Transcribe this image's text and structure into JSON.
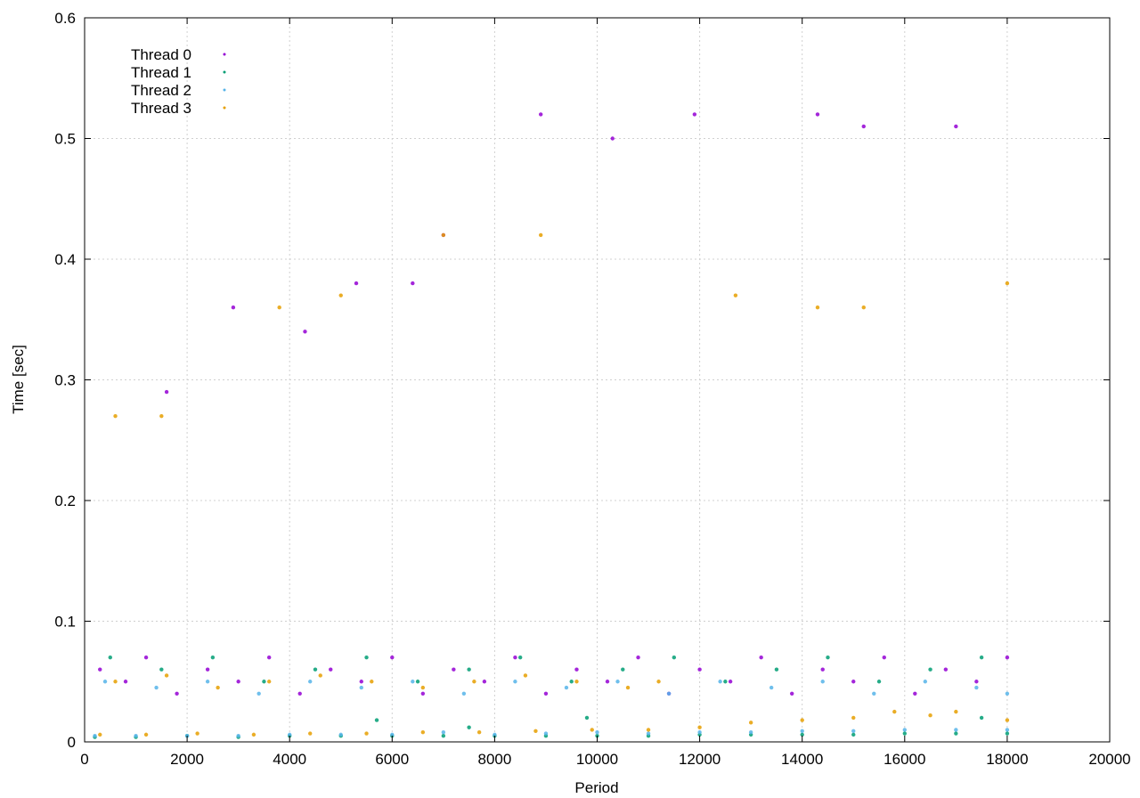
{
  "chart_data": {
    "type": "scatter",
    "title": "",
    "xlabel": "Period",
    "ylabel": "Time [sec]",
    "xlim": [
      0,
      20000
    ],
    "ylim": [
      0,
      0.6
    ],
    "x_ticks": [
      "0",
      "2000",
      "4000",
      "6000",
      "8000",
      "10000",
      "12000",
      "14000",
      "16000",
      "18000",
      "20000"
    ],
    "y_ticks": [
      "0",
      "0.1",
      "0.2",
      "0.3",
      "0.4",
      "0.5",
      "0.6"
    ],
    "grid": true,
    "legend_position": "top-left",
    "series": [
      {
        "name": "Thread 0",
        "color": "#9400d3",
        "points": [
          [
            300,
            0.06
          ],
          [
            800,
            0.05
          ],
          [
            1200,
            0.07
          ],
          [
            1800,
            0.04
          ],
          [
            2400,
            0.06
          ],
          [
            3000,
            0.05
          ],
          [
            3600,
            0.07
          ],
          [
            4200,
            0.04
          ],
          [
            4800,
            0.06
          ],
          [
            5400,
            0.05
          ],
          [
            6000,
            0.07
          ],
          [
            6600,
            0.04
          ],
          [
            7200,
            0.06
          ],
          [
            7800,
            0.05
          ],
          [
            8400,
            0.07
          ],
          [
            9000,
            0.04
          ],
          [
            9600,
            0.06
          ],
          [
            10200,
            0.05
          ],
          [
            10800,
            0.07
          ],
          [
            11400,
            0.04
          ],
          [
            12000,
            0.06
          ],
          [
            12600,
            0.05
          ],
          [
            13200,
            0.07
          ],
          [
            13800,
            0.04
          ],
          [
            14400,
            0.06
          ],
          [
            15000,
            0.05
          ],
          [
            15600,
            0.07
          ],
          [
            16200,
            0.04
          ],
          [
            16800,
            0.06
          ],
          [
            17400,
            0.05
          ],
          [
            18000,
            0.07
          ],
          [
            1600,
            0.29
          ],
          [
            2900,
            0.36
          ],
          [
            4300,
            0.34
          ],
          [
            5300,
            0.38
          ],
          [
            6400,
            0.38
          ],
          [
            7000,
            0.42
          ],
          [
            8900,
            0.52
          ],
          [
            10300,
            0.5
          ],
          [
            11900,
            0.52
          ],
          [
            14300,
            0.52
          ],
          [
            15200,
            0.51
          ],
          [
            17000,
            0.51
          ]
        ]
      },
      {
        "name": "Thread 1",
        "color": "#009e73",
        "points": [
          [
            200,
            0.004
          ],
          [
            1000,
            0.004
          ],
          [
            2000,
            0.005
          ],
          [
            3000,
            0.004
          ],
          [
            4000,
            0.005
          ],
          [
            5000,
            0.005
          ],
          [
            5700,
            0.018
          ],
          [
            6000,
            0.005
          ],
          [
            7000,
            0.005
          ],
          [
            7500,
            0.012
          ],
          [
            8000,
            0.005
          ],
          [
            9000,
            0.005
          ],
          [
            9800,
            0.02
          ],
          [
            10000,
            0.005
          ],
          [
            11000,
            0.005
          ],
          [
            12000,
            0.006
          ],
          [
            13000,
            0.006
          ],
          [
            14000,
            0.006
          ],
          [
            15000,
            0.006
          ],
          [
            16000,
            0.007
          ],
          [
            17000,
            0.007
          ],
          [
            17500,
            0.02
          ],
          [
            18000,
            0.007
          ],
          [
            500,
            0.07
          ],
          [
            1500,
            0.06
          ],
          [
            2500,
            0.07
          ],
          [
            3500,
            0.05
          ],
          [
            4500,
            0.06
          ],
          [
            5500,
            0.07
          ],
          [
            6500,
            0.05
          ],
          [
            7500,
            0.06
          ],
          [
            8500,
            0.07
          ],
          [
            9500,
            0.05
          ],
          [
            10500,
            0.06
          ],
          [
            11500,
            0.07
          ],
          [
            12500,
            0.05
          ],
          [
            13500,
            0.06
          ],
          [
            14500,
            0.07
          ],
          [
            15500,
            0.05
          ],
          [
            16500,
            0.06
          ],
          [
            17500,
            0.07
          ]
        ]
      },
      {
        "name": "Thread 2",
        "color": "#56b4e9",
        "points": [
          [
            200,
            0.005
          ],
          [
            1000,
            0.005
          ],
          [
            2000,
            0.005
          ],
          [
            3000,
            0.005
          ],
          [
            4000,
            0.006
          ],
          [
            5000,
            0.006
          ],
          [
            6000,
            0.006
          ],
          [
            7000,
            0.008
          ],
          [
            8000,
            0.006
          ],
          [
            9000,
            0.007
          ],
          [
            10000,
            0.008
          ],
          [
            11000,
            0.007
          ],
          [
            12000,
            0.008
          ],
          [
            13000,
            0.008
          ],
          [
            14000,
            0.009
          ],
          [
            15000,
            0.009
          ],
          [
            16000,
            0.01
          ],
          [
            17000,
            0.01
          ],
          [
            18000,
            0.01
          ],
          [
            400,
            0.05
          ],
          [
            1400,
            0.045
          ],
          [
            2400,
            0.05
          ],
          [
            3400,
            0.04
          ],
          [
            4400,
            0.05
          ],
          [
            5400,
            0.045
          ],
          [
            6400,
            0.05
          ],
          [
            7400,
            0.04
          ],
          [
            8400,
            0.05
          ],
          [
            9400,
            0.045
          ],
          [
            10400,
            0.05
          ],
          [
            11400,
            0.04
          ],
          [
            12400,
            0.05
          ],
          [
            13400,
            0.045
          ],
          [
            14400,
            0.05
          ],
          [
            15400,
            0.04
          ],
          [
            16400,
            0.05
          ],
          [
            17400,
            0.045
          ],
          [
            18000,
            0.04
          ]
        ]
      },
      {
        "name": "Thread 3",
        "color": "#e69f00",
        "points": [
          [
            300,
            0.006
          ],
          [
            1200,
            0.006
          ],
          [
            2200,
            0.007
          ],
          [
            3300,
            0.006
          ],
          [
            4400,
            0.007
          ],
          [
            5500,
            0.007
          ],
          [
            6600,
            0.008
          ],
          [
            7700,
            0.008
          ],
          [
            8800,
            0.009
          ],
          [
            9900,
            0.01
          ],
          [
            11000,
            0.01
          ],
          [
            12000,
            0.012
          ],
          [
            13000,
            0.016
          ],
          [
            14000,
            0.018
          ],
          [
            15000,
            0.02
          ],
          [
            15800,
            0.025
          ],
          [
            16500,
            0.022
          ],
          [
            17000,
            0.025
          ],
          [
            18000,
            0.018
          ],
          [
            600,
            0.05
          ],
          [
            1600,
            0.055
          ],
          [
            2600,
            0.045
          ],
          [
            3600,
            0.05
          ],
          [
            4600,
            0.055
          ],
          [
            5600,
            0.05
          ],
          [
            6600,
            0.045
          ],
          [
            7600,
            0.05
          ],
          [
            8600,
            0.055
          ],
          [
            9600,
            0.05
          ],
          [
            10600,
            0.045
          ],
          [
            11200,
            0.05
          ],
          [
            600,
            0.27
          ],
          [
            1500,
            0.27
          ],
          [
            3800,
            0.36
          ],
          [
            5000,
            0.37
          ],
          [
            7000,
            0.42
          ],
          [
            8900,
            0.42
          ],
          [
            12700,
            0.37
          ],
          [
            14300,
            0.36
          ],
          [
            15200,
            0.36
          ],
          [
            18000,
            0.38
          ]
        ]
      }
    ]
  }
}
